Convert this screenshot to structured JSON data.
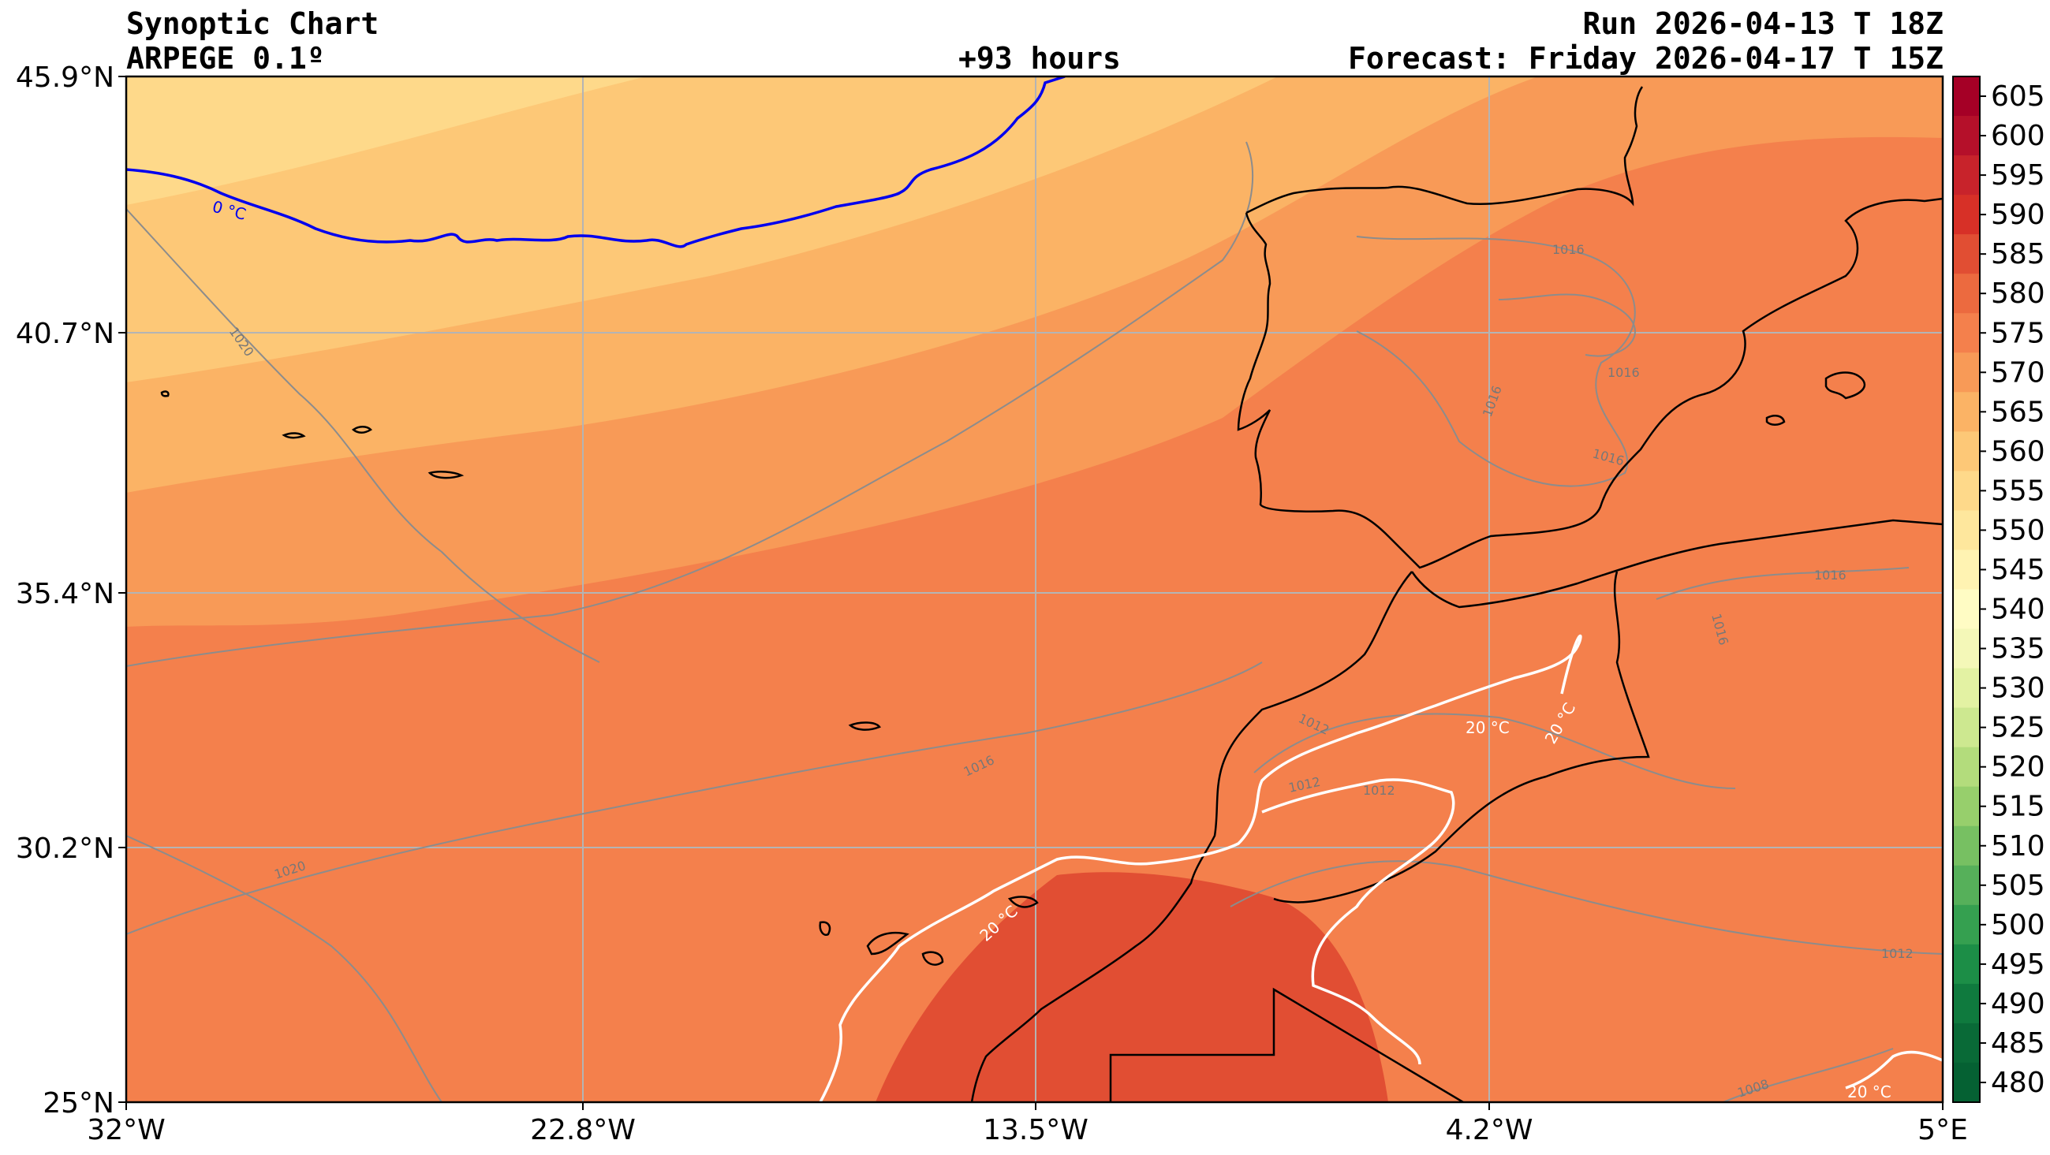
{
  "header": {
    "title": "Synoptic Chart",
    "model": "ARPEGE 0.1º",
    "lead": "+93 hours",
    "run": "Run 2026-04-13 T 18Z",
    "forecast": "Forecast: Friday 2026-04-17 T 15Z"
  },
  "map": {
    "lat_labels": [
      "45.9°N",
      "40.7°N",
      "35.4°N",
      "30.2°N",
      "25°N"
    ],
    "lon_labels": [
      "32°W",
      "22.8°W",
      "13.5°W",
      "4.2°W",
      "5°E"
    ],
    "isotherm_labels": [
      "0 °C",
      "20 °C",
      "20 °C",
      "20 °C",
      "20 °C"
    ],
    "isobar_labels": [
      "1020",
      "1020",
      "1016",
      "1016",
      "1016",
      "1016",
      "1016",
      "1016",
      "1016",
      "1012",
      "1012",
      "1012",
      "1012",
      "1008"
    ]
  },
  "colorbar": {
    "values": [
      605,
      600,
      595,
      590,
      585,
      580,
      575,
      570,
      565,
      560,
      555,
      550,
      545,
      540,
      535,
      530,
      525,
      520,
      515,
      510,
      505,
      500,
      495,
      490,
      485,
      480
    ],
    "colors": [
      "#a50026",
      "#b5102a",
      "#c8232b",
      "#d73027",
      "#e14e33",
      "#ec6a3f",
      "#f4804c",
      "#f89a57",
      "#fbb365",
      "#fdc877",
      "#fed98a",
      "#fee79d",
      "#fff3b2",
      "#fffcc4",
      "#f4f8b8",
      "#e3f2a3",
      "#cde890",
      "#b3dc7c",
      "#97cf6c",
      "#77c062",
      "#56b05a",
      "#35a050",
      "#1c8e47",
      "#0f7a3e",
      "#096a37",
      "#056133"
    ]
  },
  "colors": {
    "isotherm_zero": "#0000ee",
    "isotherm_twenty": "#ffffff",
    "isobar": "#8c8c8c",
    "coast": "#000000",
    "grid": "#b4b4b4"
  }
}
